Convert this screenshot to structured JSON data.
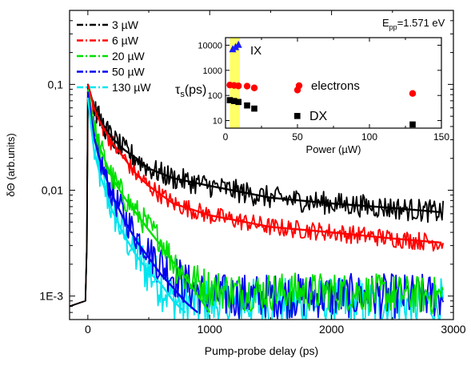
{
  "chart_data": [
    {
      "type": "line",
      "xlabel": "Pump-probe delay (ps)",
      "ylabel": "δΘ (arb.units)",
      "annotation": {
        "prefix": "E",
        "sub": "pp",
        "suffix": "=1.571 eV"
      },
      "xlim": [
        -150,
        3000
      ],
      "ylim": [
        0.0006,
        0.5
      ],
      "yscale": "log",
      "xticks": [
        0,
        1000,
        2000,
        3000
      ],
      "xtick_labels": [
        "0",
        "1000",
        "2000",
        "3000"
      ],
      "yticks": [
        0.001,
        0.01,
        0.1
      ],
      "ytick_labels": [
        "1E-3",
        "0,01",
        "0,1"
      ],
      "legend_position": "top-left",
      "series": [
        {
          "name": "3 µW",
          "color": "#000000",
          "x": [
            0,
            50,
            100,
            200,
            300,
            400,
            500,
            700,
            1000,
            1500,
            2000,
            2500,
            2900
          ],
          "y": [
            0.1,
            0.062,
            0.046,
            0.031,
            0.024,
            0.02,
            0.016,
            0.013,
            0.011,
            0.0085,
            0.0075,
            0.0068,
            0.0062
          ],
          "fit": [
            0.1,
            0.062,
            0.046,
            0.031,
            0.024,
            0.02,
            0.016,
            0.013,
            0.011,
            0.0085,
            0.0075,
            0.0068,
            0.0062
          ]
        },
        {
          "name": "6 µW",
          "color": "#ff0000",
          "x": [
            0,
            50,
            100,
            200,
            300,
            400,
            500,
            700,
            1000,
            1500,
            2000,
            2500,
            2900
          ],
          "y": [
            0.1,
            0.06,
            0.044,
            0.028,
            0.02,
            0.014,
            0.011,
            0.0075,
            0.0058,
            0.0045,
            0.004,
            0.0035,
            0.0032
          ],
          "fit": [
            0.1,
            0.06,
            0.044,
            0.028,
            0.02,
            0.014,
            0.011,
            0.0075,
            0.0058,
            0.0045,
            0.004,
            0.0035,
            0.0032
          ]
        },
        {
          "name": "20 µW",
          "color": "#00e000",
          "x": [
            0,
            50,
            100,
            200,
            300,
            400,
            500,
            600,
            700,
            800,
            1000,
            1200,
            1500,
            2000,
            2500,
            2900
          ],
          "y": [
            0.09,
            0.04,
            0.025,
            0.013,
            0.0085,
            0.0062,
            0.0045,
            0.0034,
            0.0022,
            0.0015,
            0.0012,
            0.0011,
            0.0011,
            0.0011,
            0.00105,
            0.001
          ],
          "fit": [
            0.09,
            0.04,
            0.025,
            0.013,
            0.0085,
            0.006,
            0.0042,
            0.003,
            0.0021,
            0.0015,
            0.0007
          ]
        },
        {
          "name": "50 µW",
          "color": "#0000ee",
          "x": [
            0,
            50,
            100,
            200,
            300,
            400,
            500,
            600,
            700,
            800,
            900,
            1000,
            1200,
            1500,
            2000,
            2500,
            2900
          ],
          "y": [
            0.085,
            0.032,
            0.019,
            0.009,
            0.0057,
            0.0037,
            0.0027,
            0.002,
            0.0016,
            0.0013,
            0.0011,
            0.001,
            0.001,
            0.001,
            0.001,
            0.001,
            0.001
          ],
          "fit": [
            0.085,
            0.032,
            0.019,
            0.009,
            0.0052,
            0.0033,
            0.0023,
            0.0016,
            0.0012,
            0.00088,
            0.0007
          ]
        },
        {
          "name": "130 µW",
          "color": "#00e5ee",
          "x": [
            0,
            50,
            100,
            200,
            300,
            400,
            500,
            600,
            700,
            800,
            1000,
            1500,
            2000,
            2500,
            2900
          ],
          "y": [
            0.075,
            0.024,
            0.014,
            0.0064,
            0.0037,
            0.0024,
            0.0017,
            0.0013,
            0.0009,
            0.00085,
            0.00085,
            0.00085,
            0.00085,
            0.00085,
            0.00085
          ],
          "fit": [
            0.075,
            0.024,
            0.014,
            0.0064,
            0.0037,
            0.0024,
            0.0017,
            0.0013,
            0.0009,
            0.0007
          ]
        }
      ]
    },
    {
      "type": "scatter",
      "xlabel": "Power (µW)",
      "ylabel": {
        "symbol": "τ",
        "sub": "s",
        "suffix": "(ps)"
      },
      "xlim": [
        0,
        150
      ],
      "ylim": [
        5,
        20000
      ],
      "yscale": "log",
      "xticks": [
        0,
        50,
        100,
        150
      ],
      "xtick_labels": [
        "0",
        "50",
        "100",
        "150"
      ],
      "yticks": [
        10,
        100,
        1000,
        10000
      ],
      "ytick_labels": [
        "10",
        "100",
        "1000",
        "10000"
      ],
      "highlight_band": {
        "x": [
          3,
          10
        ],
        "color": "#ffff66"
      },
      "series": [
        {
          "name": "IX",
          "color": "#1a1aff",
          "marker": "triangle",
          "x": [
            5,
            7,
            9
          ],
          "y": [
            7000,
            8500,
            10500
          ]
        },
        {
          "name": "electrons",
          "color": "#ff0000",
          "marker": "circle",
          "x": [
            3,
            6,
            9,
            15,
            20,
            50,
            130
          ],
          "y": [
            260,
            250,
            240,
            235,
            200,
            165,
            120
          ]
        },
        {
          "name": "DX",
          "color": "#000000",
          "marker": "square",
          "x": [
            3,
            6,
            9,
            15,
            20,
            130
          ],
          "y": [
            65,
            60,
            55,
            40,
            30,
            7
          ]
        }
      ]
    }
  ]
}
